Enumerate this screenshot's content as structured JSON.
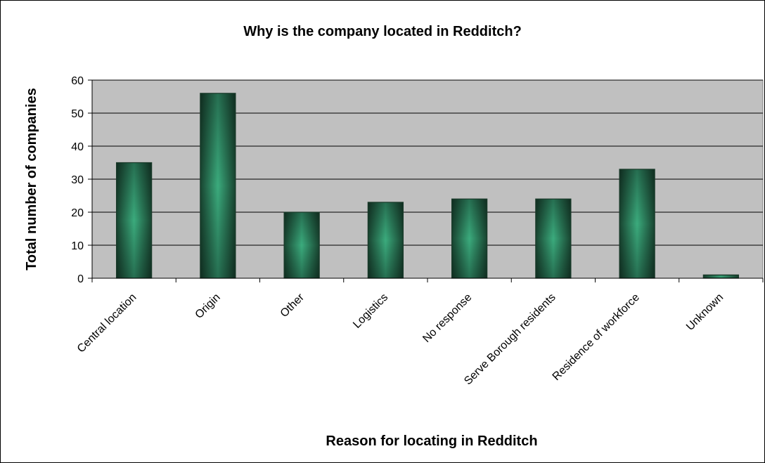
{
  "chart_data": {
    "type": "bar",
    "title": "Why is the company located in Redditch?",
    "xlabel": "Reason for locating in Redditch",
    "ylabel": "Total number of companies",
    "categories": [
      "Central location",
      "Origin",
      "Other",
      "Logistics",
      "No response",
      "Serve Borough residents",
      "Residence of workforce",
      "Unknown"
    ],
    "values": [
      35,
      56,
      20,
      23,
      24,
      24,
      33,
      1
    ],
    "ylim": [
      0,
      60
    ],
    "yticks": [
      0,
      10,
      20,
      30,
      40,
      50,
      60
    ],
    "grid": true,
    "legend": "none",
    "colors": {
      "plot_background": "#c0c0c0",
      "bar_edge": "#1a3a2a",
      "bar_dark": "#1b4a33",
      "bar_light": "#3aa77a"
    }
  }
}
